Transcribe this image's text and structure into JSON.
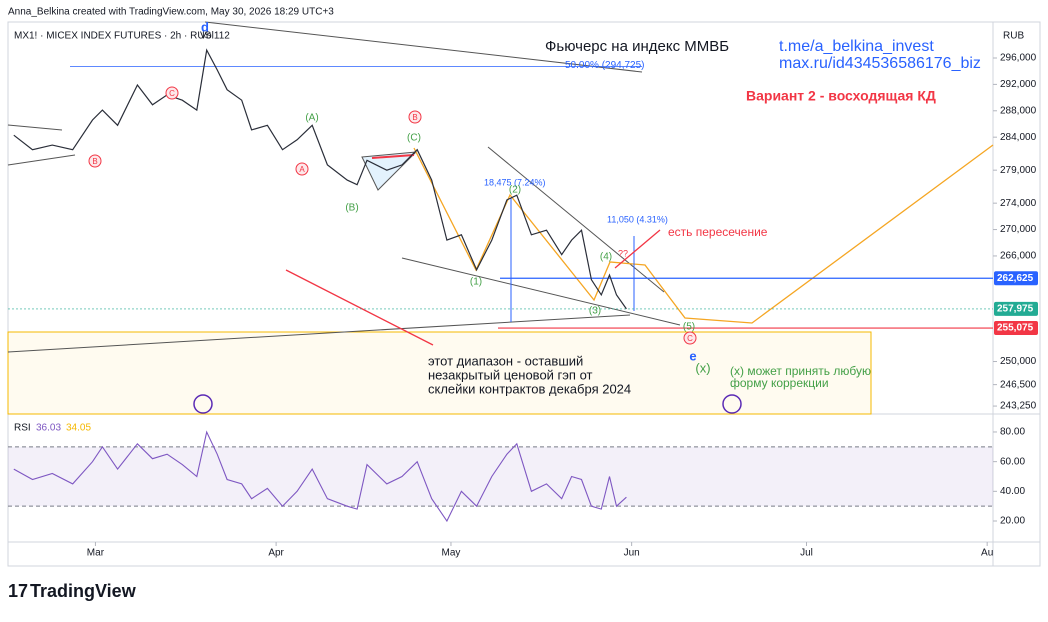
{
  "header": {
    "credit": "Anna_Belkina created with TradingView.com, May 30, 2026 18:29 UTC+3",
    "brand": "TradingView"
  },
  "chart_data": [
    {
      "type": "line",
      "title": "Фьючерс на индекс ММВБ",
      "symbol": "MX1! · MICEX INDEX FUTURES · 2h · RUS",
      "volume_label": "Vol112",
      "currency": "RUB",
      "color": "#2a2e39",
      "x": [
        46,
        49.2,
        52.6,
        56.1,
        59.5,
        61.2,
        63.8,
        67.2,
        69.8,
        72.3,
        74.9,
        77.4,
        79.1,
        80.9,
        82.6,
        85.1,
        86.8,
        89.5,
        92.1,
        94.6,
        97.2,
        99.8,
        103.2,
        104.9,
        106.6,
        110.0,
        112.6,
        115.2,
        117.7,
        120.3,
        122.8,
        125.4,
        128.0,
        130.6,
        132.3,
        134.8,
        137.4,
        140.0,
        141.7,
        143.4,
        145.1,
        146.8,
        148.2,
        149.4,
        151.1
      ],
      "values": [
        284300,
        282100,
        282800,
        282100,
        286600,
        288100,
        285800,
        291900,
        288900,
        290400,
        289600,
        288100,
        297200,
        294200,
        291200,
        289600,
        285100,
        285800,
        282100,
        283600,
        285800,
        279800,
        277500,
        276800,
        280500,
        279000,
        279800,
        282100,
        277500,
        268400,
        269200,
        263900,
        268400,
        274500,
        275200,
        269200,
        269900,
        266200,
        268400,
        269900,
        262400,
        260100,
        263100,
        260100,
        257975
      ],
      "xlim": [
        45,
        214
      ],
      "xticks": [
        {
          "value": 60,
          "label": "Mar"
        },
        {
          "value": 91,
          "label": "Apr"
        },
        {
          "value": 121,
          "label": "May"
        },
        {
          "value": 152,
          "label": "Jun"
        },
        {
          "value": 182,
          "label": "Jul"
        },
        {
          "value": 213,
          "label": "Au"
        }
      ],
      "ylim": [
        242200,
        301000
      ],
      "yticks": [
        {
          "value": 296000,
          "label": "296,000"
        },
        {
          "value": 292000,
          "label": "292,000"
        },
        {
          "value": 288000,
          "label": "288,000"
        },
        {
          "value": 284000,
          "label": "284,000"
        },
        {
          "value": 279000,
          "label": "279,000"
        },
        {
          "value": 274000,
          "label": "274,000"
        },
        {
          "value": 270000,
          "label": "270,000"
        },
        {
          "value": 266000,
          "label": "266,000"
        },
        {
          "value": 250000,
          "label": "250,000"
        },
        {
          "value": 246500,
          "label": "246,500"
        },
        {
          "value": 243250,
          "label": "243,250"
        }
      ],
      "price_levels": [
        {
          "value": 262625,
          "label": "262,625",
          "color": "#2962ff"
        },
        {
          "value": 257975,
          "label": "257,975",
          "color": "#22ab94"
        },
        {
          "value": 255075,
          "label": "255,075",
          "color": "#f23645"
        }
      ],
      "fib": {
        "value": 294725,
        "label": "50.00% (294,725)"
      },
      "annotations": [
        "t.me/a_belkina_invest",
        "max.ru/id434536586176_biz",
        "Вариант 2 - восходящая КД",
        "есть пересечение",
        "этот диапазон - оставший",
        "незакрытый ценовой гэп от",
        "склейки контрактов декабря 2024",
        "(x) может принять любую",
        "форму коррекции",
        "18,475 (7.24%)",
        "11,050 (4.31%)",
        "??"
      ],
      "wave_labels": [
        "(A)",
        "(B)",
        "(C)",
        "(1)",
        "(2)",
        "(3)",
        "(4)",
        "(5)",
        "(x)",
        "e",
        "d"
      ],
      "circled_labels": [
        "B",
        "C",
        "A",
        "B",
        "C"
      ]
    },
    {
      "type": "line",
      "title": "RSI",
      "last_value": 36.03,
      "ma_value": 34.05,
      "color": "#7e57c2",
      "x": [
        46,
        49.2,
        52.6,
        56.1,
        59.5,
        61.2,
        63.8,
        67.2,
        69.8,
        72.3,
        74.9,
        77.4,
        79.1,
        80.9,
        82.6,
        85.1,
        86.8,
        89.5,
        92.1,
        94.6,
        97.2,
        99.8,
        103.2,
        104.9,
        106.6,
        110.0,
        112.6,
        115.2,
        117.7,
        120.3,
        122.8,
        125.4,
        128.0,
        130.6,
        132.3,
        134.8,
        137.4,
        140.0,
        141.7,
        143.4,
        145.1,
        146.8,
        148.2,
        149.4,
        151.1
      ],
      "values": [
        55,
        48,
        52,
        45,
        60,
        70,
        55,
        72,
        62,
        65,
        58,
        50,
        80,
        65,
        48,
        45,
        35,
        42,
        30,
        40,
        55,
        35,
        30,
        28,
        58,
        45,
        50,
        60,
        35,
        20,
        40,
        30,
        50,
        65,
        72,
        40,
        45,
        35,
        50,
        48,
        30,
        28,
        50,
        30,
        36.03
      ],
      "ylim": [
        7.2,
        84.7
      ],
      "yticks": [
        {
          "value": 80,
          "label": "80.00"
        },
        {
          "value": 60,
          "label": "60.00"
        },
        {
          "value": 40,
          "label": "40.00"
        },
        {
          "value": 20,
          "label": "20.00"
        }
      ],
      "bands": [
        70,
        30
      ]
    }
  ]
}
